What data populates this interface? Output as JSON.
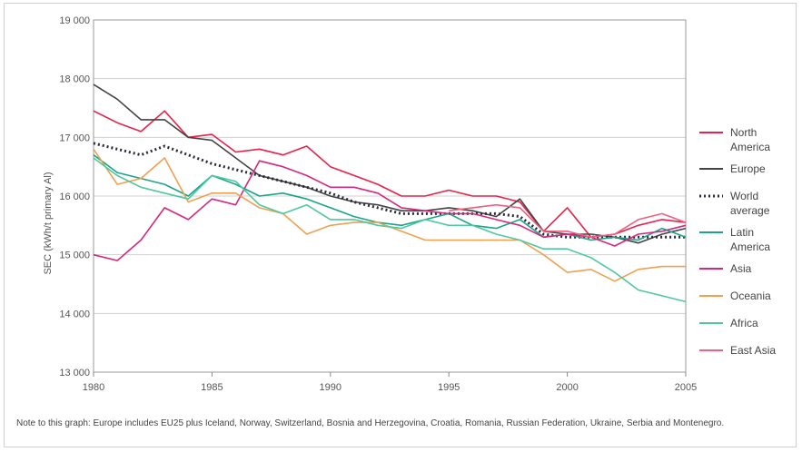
{
  "chart_data": {
    "type": "line",
    "title": "",
    "xlabel": "",
    "ylabel": "SEC (kWh/t primary Al)",
    "xlim": [
      1980,
      2005
    ],
    "ylim": [
      13000,
      19000
    ],
    "grid": true,
    "legend_position": "right",
    "x_ticks": [
      "1980",
      "1985",
      "1990",
      "1995",
      "2000",
      "2005"
    ],
    "y_ticks": [
      "13 000",
      "14 000",
      "15 000",
      "16 000",
      "17 000",
      "18 000",
      "19 000"
    ],
    "x": [
      1980,
      1981,
      1982,
      1983,
      1984,
      1985,
      1986,
      1987,
      1988,
      1989,
      1990,
      1991,
      1992,
      1993,
      1994,
      1995,
      1996,
      1997,
      1998,
      1999,
      2000,
      2001,
      2002,
      2003,
      2004,
      2005
    ],
    "series": [
      {
        "name": "North America",
        "color": "#e8224a",
        "dash": "none",
        "values": [
          17450,
          17250,
          17100,
          17450,
          17000,
          17050,
          16750,
          16800,
          16700,
          16850,
          16500,
          16350,
          16200,
          16000,
          16000,
          16100,
          16000,
          16000,
          15900,
          15400,
          15800,
          15300,
          15350,
          15500,
          15600,
          15550
        ]
      },
      {
        "name": "Europe",
        "color": "#444444",
        "dash": "none",
        "values": [
          17900,
          17650,
          17300,
          17300,
          17000,
          16950,
          16650,
          16350,
          16250,
          16150,
          16000,
          15900,
          15850,
          15750,
          15750,
          15800,
          15750,
          15650,
          15950,
          15400,
          15350,
          15350,
          15300,
          15200,
          15350,
          15450
        ]
      },
      {
        "name": "World average",
        "color": "#2a2a3a",
        "dash": "dot",
        "values": [
          16900,
          16800,
          16700,
          16850,
          16700,
          16550,
          16450,
          16350,
          16250,
          16150,
          16050,
          15900,
          15800,
          15700,
          15700,
          15700,
          15700,
          15700,
          15650,
          15350,
          15300,
          15300,
          15300,
          15300,
          15300,
          15300
        ]
      },
      {
        "name": "Latin America",
        "color": "#1aa58a",
        "dash": "none",
        "values": [
          16700,
          16400,
          16300,
          16200,
          16000,
          16350,
          16200,
          16000,
          16050,
          15950,
          15800,
          15650,
          15550,
          15500,
          15600,
          15700,
          15500,
          15450,
          15600,
          15300,
          15350,
          15250,
          15300,
          15250,
          15450,
          15300
        ]
      },
      {
        "name": "Asia",
        "color": "#d6287e",
        "dash": "none",
        "values": [
          15000,
          14900,
          15250,
          15800,
          15600,
          15950,
          15850,
          16600,
          16500,
          16350,
          16150,
          16150,
          16050,
          15800,
          15750,
          15700,
          15700,
          15600,
          15500,
          15300,
          15350,
          15300,
          15150,
          15350,
          15400,
          15500
        ]
      },
      {
        "name": "Oceania",
        "color": "#f0a050",
        "dash": "none",
        "values": [
          16800,
          16200,
          16300,
          16650,
          15900,
          16050,
          16050,
          15800,
          15700,
          15350,
          15500,
          15550,
          15550,
          15400,
          15250,
          15250,
          15250,
          15250,
          15250,
          15000,
          14700,
          14750,
          14550,
          14750,
          14800,
          14800
        ]
      },
      {
        "name": "Africa",
        "color": "#4ec8a0",
        "dash": "none",
        "values": [
          16650,
          16350,
          16150,
          16050,
          15950,
          16350,
          16250,
          15850,
          15700,
          15850,
          15600,
          15600,
          15500,
          15450,
          15600,
          15500,
          15500,
          15350,
          15250,
          15100,
          15100,
          14950,
          14700,
          14400,
          14300,
          14200
        ]
      },
      {
        "name": "East Asia",
        "color": "#f06080",
        "dash": "none",
        "values": [
          null,
          null,
          null,
          null,
          null,
          null,
          null,
          null,
          null,
          null,
          null,
          null,
          null,
          null,
          null,
          15750,
          15800,
          15850,
          15800,
          15400,
          15400,
          15300,
          15350,
          15600,
          15700,
          15550
        ]
      }
    ]
  },
  "legend": {
    "items": [
      {
        "lines": [
          "North",
          "America"
        ],
        "color": "#e8224a",
        "dash": "none"
      },
      {
        "lines": [
          "Europe"
        ],
        "color": "#444444",
        "dash": "none"
      },
      {
        "lines": [
          "World",
          "average"
        ],
        "color": "#2a2a3a",
        "dash": "dot"
      },
      {
        "lines": [
          "Latin",
          "America"
        ],
        "color": "#1aa58a",
        "dash": "none"
      },
      {
        "lines": [
          "Asia"
        ],
        "color": "#d6287e",
        "dash": "none"
      },
      {
        "lines": [
          "Oceania"
        ],
        "color": "#f0a050",
        "dash": "none"
      },
      {
        "lines": [
          "Africa"
        ],
        "color": "#4ec8a0",
        "dash": "none"
      },
      {
        "lines": [
          "East Asia"
        ],
        "color": "#f06080",
        "dash": "none"
      }
    ]
  },
  "footnote": "Note to this graph: Europe includes EU25 plus Iceland, Norway, Switzerland, Bosnia and Herzegovina, Croatia, Romania, Russian Federation, Ukraine, Serbia and Montenegro."
}
